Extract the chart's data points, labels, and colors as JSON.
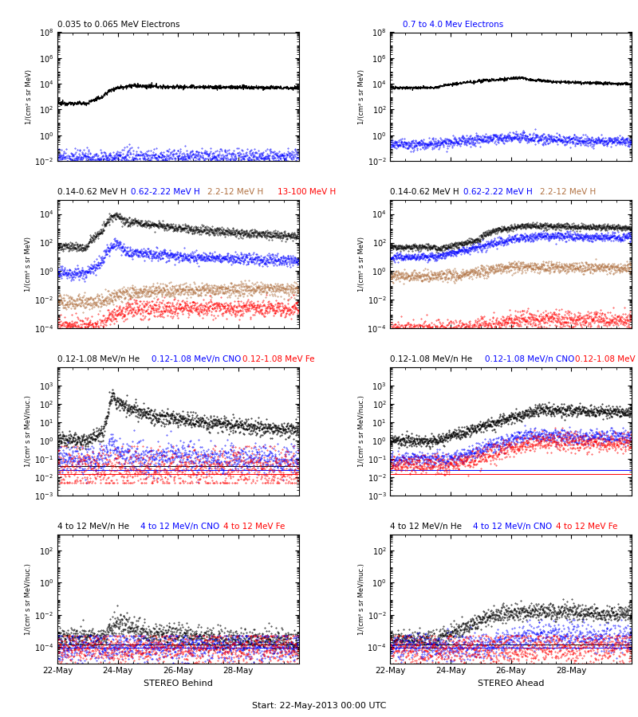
{
  "title_row1_left": "0.035 to 0.065 MeV Electrons",
  "title_row1_right": "0.7 to 4.0 Mev Electrons",
  "title_row2_labels": [
    "0.14-0.62 MeV H",
    "0.62-2.22 MeV H",
    "2.2-12 MeV H",
    "13-100 MeV H"
  ],
  "title_row2_colors": [
    "black",
    "blue",
    "#b07040",
    "red"
  ],
  "title_row3_labels": [
    "0.12-1.08 MeV/n He",
    "0.12-1.08 MeV/n CNO",
    "0.12-1.08 MeV Fe"
  ],
  "title_row3_colors": [
    "black",
    "blue",
    "red"
  ],
  "title_row4_labels": [
    "4 to 12 MeV/n He",
    "4 to 12 MeV/n CNO",
    "4 to 12 MeV Fe"
  ],
  "title_row4_colors": [
    "black",
    "blue",
    "red"
  ],
  "xlabel_left": "STEREO Behind",
  "xlabel_right": "STEREO Ahead",
  "xlabel_center": "Start: 22-May-2013 00:00 UTC",
  "xtick_labels": [
    "22-May",
    "24-May",
    "26-May",
    "28-May"
  ],
  "ylabel_mev": "1/(cm² s sr MeV)",
  "ylabel_mevnuc": "1/(cm² s sr MeV/nuc.)",
  "brown_color": "#b07040"
}
